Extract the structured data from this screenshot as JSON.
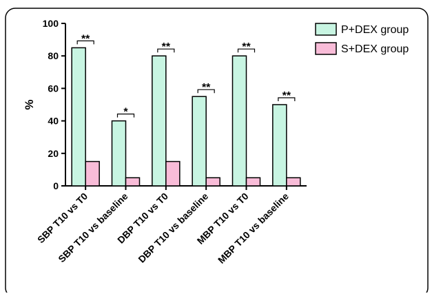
{
  "chart_data": {
    "type": "bar",
    "categories": [
      "SBP T10 vs T0",
      "SBP T10 vs baseline",
      "DBP T10 vs T0",
      "DBP T10 vs baseline",
      "MBP T10 vs T0",
      "MBP T10 vs baseline"
    ],
    "series": [
      {
        "name": "P+DEX group",
        "values": [
          85,
          40,
          80,
          55,
          80,
          50
        ],
        "color": "#c8f5e2"
      },
      {
        "name": "S+DEX group",
        "values": [
          15,
          5,
          15,
          5,
          5,
          5
        ],
        "color": "#f9bcd8"
      }
    ],
    "significance": [
      "**",
      "*",
      "**",
      "**",
      "**",
      "**"
    ],
    "ylabel": "%",
    "ylim": [
      0,
      100
    ],
    "yticks": [
      0,
      20,
      40,
      60,
      80,
      100
    ],
    "grid": false,
    "legend_position": "top-right"
  }
}
